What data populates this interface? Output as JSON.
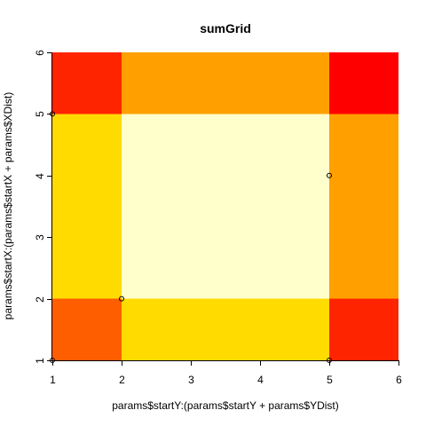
{
  "chart_data": {
    "type": "heatmap",
    "title": "sumGrid",
    "xlabel": "params$startY:(params$startY + params$YDist)",
    "ylabel": "params$startX:(params$startX + params$XDist)",
    "x_edges": [
      1,
      2,
      5,
      6
    ],
    "y_edges": [
      1,
      2,
      5,
      6
    ],
    "xlim": [
      1,
      6
    ],
    "ylim": [
      1,
      6
    ],
    "xticks": [
      "1",
      "2",
      "3",
      "4",
      "5",
      "6"
    ],
    "yticks": [
      "1",
      "2",
      "3",
      "4",
      "5",
      "6"
    ],
    "cells": [
      [
        {
          "x": [
            1,
            2
          ],
          "y": [
            1,
            2
          ],
          "color": "#FF5E00"
        },
        {
          "x": [
            2,
            5
          ],
          "y": [
            1,
            2
          ],
          "color": "#FFDB00"
        },
        {
          "x": [
            5,
            6
          ],
          "y": [
            1,
            2
          ],
          "color": "#FF2400"
        }
      ],
      [
        {
          "x": [
            1,
            2
          ],
          "y": [
            2,
            5
          ],
          "color": "#FFDB00"
        },
        {
          "x": [
            2,
            5
          ],
          "y": [
            2,
            5
          ],
          "color": "#FFFFCC"
        },
        {
          "x": [
            5,
            6
          ],
          "y": [
            2,
            5
          ],
          "color": "#FFA000"
        }
      ],
      [
        {
          "x": [
            1,
            2
          ],
          "y": [
            5,
            6
          ],
          "color": "#FF2400"
        },
        {
          "x": [
            2,
            5
          ],
          "y": [
            5,
            6
          ],
          "color": "#FFA000"
        },
        {
          "x": [
            5,
            6
          ],
          "y": [
            5,
            6
          ],
          "color": "#FF0000"
        }
      ]
    ],
    "points": [
      {
        "x": 1,
        "y": 1
      },
      {
        "x": 1,
        "y": 5
      },
      {
        "x": 2,
        "y": 2
      },
      {
        "x": 5,
        "y": 1
      },
      {
        "x": 5,
        "y": 4
      }
    ],
    "grid": false,
    "legend": "none"
  }
}
